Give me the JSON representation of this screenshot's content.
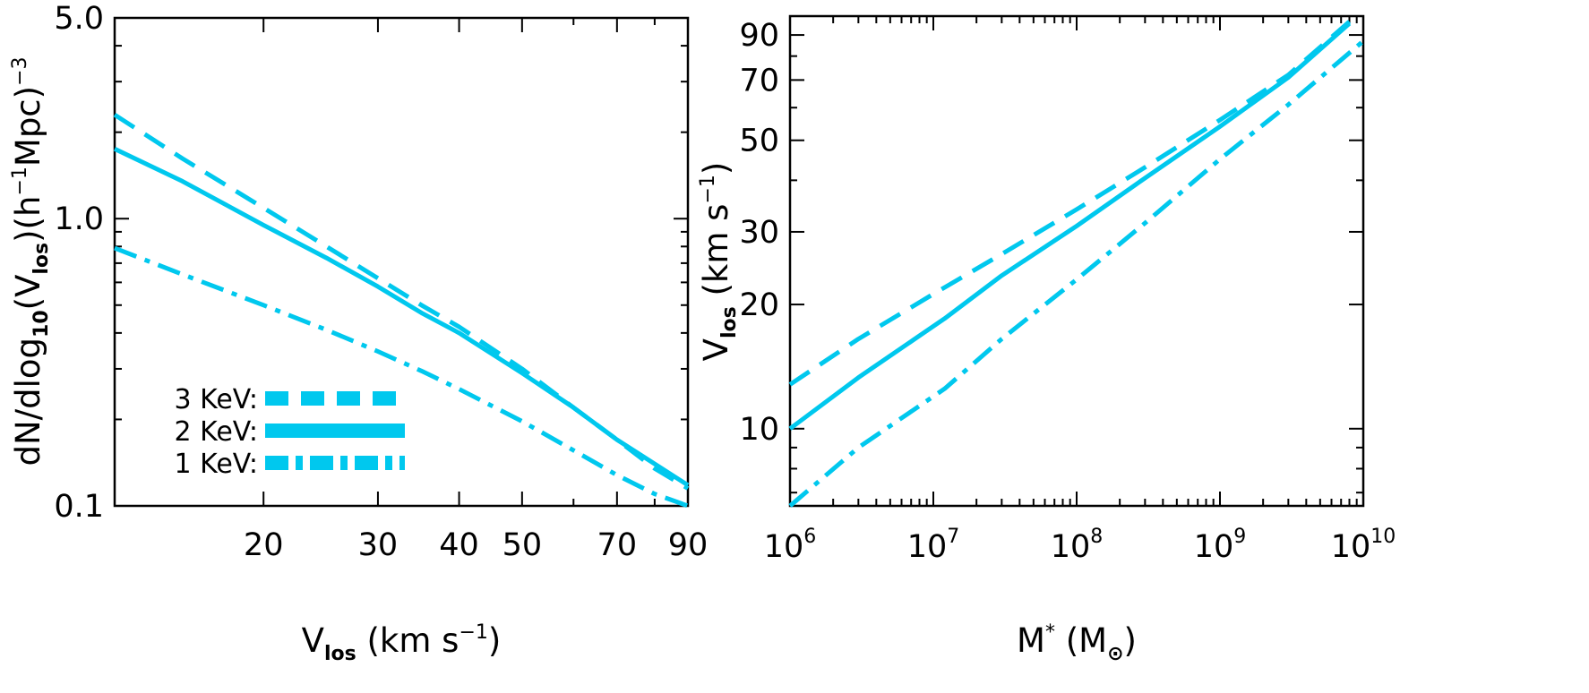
{
  "chart_data": [
    {
      "type": "line",
      "xscale": "log",
      "yscale": "log",
      "xlim": [
        11.8,
        90
      ],
      "ylim": [
        0.1,
        5.0
      ],
      "xticks": [
        20,
        30,
        40,
        50,
        70,
        90
      ],
      "xtick_labels": [
        "20",
        "30",
        "40",
        "50",
        "70",
        "90"
      ],
      "yticks": [
        0.1,
        1.0,
        5.0
      ],
      "ytick_labels": [
        "0.1",
        "1.0",
        "5.0"
      ],
      "xlabel": {
        "main": "V",
        "sub": "los",
        "rest_a": " (km s",
        "sup": "−1",
        "rest_b": ")"
      },
      "ylabel": {
        "a": "dN/dlog",
        "sub1": "10",
        "b": "(V",
        "sub2": "los",
        "c": ")(h",
        "sup1": "−1",
        "d": "Mpc)",
        "sup2": "−3"
      },
      "legend": {
        "position": "bottom-left",
        "entries": [
          {
            "label": "3 KeV:",
            "style": "dashed"
          },
          {
            "label": "2 KeV:",
            "style": "solid"
          },
          {
            "label": "1 KeV:",
            "style": "dashdot"
          }
        ]
      },
      "series": [
        {
          "name": "3 KeV",
          "style": "dashed",
          "x": [
            11.8,
            15,
            20,
            25,
            30,
            35,
            40,
            50,
            60,
            70,
            80,
            90
          ],
          "y": [
            2.3,
            1.62,
            1.09,
            0.8,
            0.62,
            0.5,
            0.42,
            0.3,
            0.22,
            0.17,
            0.135,
            0.115
          ]
        },
        {
          "name": "2 KeV",
          "style": "solid",
          "x": [
            11.8,
            15,
            20,
            25,
            30,
            35,
            40,
            50,
            60,
            70,
            80,
            90
          ],
          "y": [
            1.75,
            1.35,
            0.95,
            0.73,
            0.58,
            0.47,
            0.4,
            0.29,
            0.22,
            0.17,
            0.14,
            0.118
          ]
        },
        {
          "name": "1 KeV",
          "style": "dashdot",
          "x": [
            11.8,
            15,
            20,
            25,
            30,
            35,
            40,
            50,
            60,
            70,
            80,
            90
          ],
          "y": [
            0.79,
            0.64,
            0.5,
            0.41,
            0.345,
            0.295,
            0.255,
            0.197,
            0.156,
            0.128,
            0.11,
            0.1
          ]
        }
      ]
    },
    {
      "type": "line",
      "xscale": "log",
      "yscale": "log",
      "xlim": [
        1000000,
        10000000000
      ],
      "ylim": [
        6.5,
        100
      ],
      "xticks_exponents": [
        "6",
        "7",
        "8",
        "9",
        "10"
      ],
      "xtick_base": "10",
      "yticks": [
        10,
        20,
        30,
        50,
        70,
        90
      ],
      "ytick_labels": [
        "10",
        "20",
        "30",
        "50",
        "70",
        "90"
      ],
      "xlabel": {
        "main": "M",
        "sup": "*",
        "rest_a": " (M",
        "sub": "⊙",
        "rest_b": ")"
      },
      "ylabel": {
        "main": "V",
        "sub": "los",
        "rest_a": " (km s",
        "sup": "−1",
        "rest_b": ")"
      },
      "series": [
        {
          "name": "3 KeV",
          "style": "dashed",
          "x": [
            1000000,
            3000000,
            10000000,
            30000000,
            100000000,
            300000000,
            1000000000,
            3000000000,
            8000000000
          ],
          "y": [
            12.8,
            16.5,
            21.2,
            26.5,
            34,
            43,
            56,
            72,
            97
          ]
        },
        {
          "name": "2 KeV",
          "style": "solid",
          "x": [
            1000000,
            3000000,
            12000000,
            30000000,
            100000000,
            300000000,
            1000000000,
            3000000000,
            8000000000
          ],
          "y": [
            10,
            13.3,
            18.5,
            23.5,
            31,
            40.5,
            54,
            71,
            96
          ]
        },
        {
          "name": "1 KeV",
          "style": "dashdot",
          "x": [
            1000000,
            3000000,
            12000000,
            30000000,
            100000000,
            300000000,
            1000000000,
            3000000000,
            10000000000
          ],
          "y": [
            6.5,
            9,
            12.5,
            16.5,
            23,
            31.5,
            45,
            61,
            87
          ]
        }
      ]
    }
  ]
}
